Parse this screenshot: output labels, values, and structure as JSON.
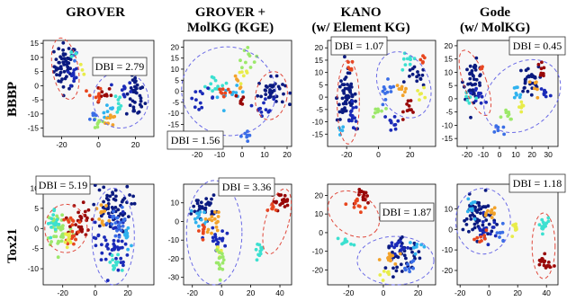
{
  "column_titles": [
    {
      "line1": "GROVER",
      "line2": ""
    },
    {
      "line1": "GROVER +",
      "line2": "MolKG (KGE)"
    },
    {
      "line1": "KANO",
      "line2": "(w/ Element KG)"
    },
    {
      "line1": "Gode",
      "line2": "(w/ MolKG)"
    }
  ],
  "row_labels": [
    "BBBP",
    "Tox21"
  ],
  "colors": {
    "panel_bg": "#f7f7f7",
    "red_ellipse": "#e0483b",
    "blue_ellipse": "#6a6ae6",
    "palette": [
      "#0a1a80",
      "#1a2ab8",
      "#3a6ee6",
      "#2fb2ee",
      "#3ce0d0",
      "#9ce86a",
      "#e8ec4a",
      "#f2a22a",
      "#e8461e",
      "#980808"
    ]
  },
  "chart_data": [
    {
      "type": "scatter",
      "row": "BBBP",
      "method": "GROVER",
      "annotation": "DBI = 2.79",
      "xlim": [
        -30,
        30
      ],
      "ylim": [
        -18,
        16
      ],
      "xticks": [
        -20,
        0,
        20
      ],
      "yticks": [
        15,
        10,
        5,
        0,
        -5,
        -10,
        -15
      ],
      "clusters": [
        {
          "color": 0,
          "cx": -18,
          "cy": 7,
          "sx": 3,
          "sy": 4,
          "n": 55
        },
        {
          "color": 1,
          "cx": -15,
          "cy": 3,
          "sx": 2,
          "sy": 2,
          "n": 10
        },
        {
          "color": 2,
          "cx": -12,
          "cy": 10,
          "sx": 1,
          "sy": 1,
          "n": 3
        },
        {
          "color": 4,
          "cx": -14,
          "cy": 11,
          "sx": 1,
          "sy": 1,
          "n": 3
        },
        {
          "color": 6,
          "cx": -9,
          "cy": 5,
          "sx": 1,
          "sy": 1,
          "n": 3
        },
        {
          "color": 0,
          "cx": 20,
          "cy": -4,
          "sx": 2.5,
          "sy": 4,
          "n": 35
        },
        {
          "color": 9,
          "cx": 3,
          "cy": -3,
          "sx": 2,
          "sy": 2,
          "n": 10
        },
        {
          "color": 8,
          "cx": -2,
          "cy": -4,
          "sx": 2,
          "sy": 2,
          "n": 8
        },
        {
          "color": 4,
          "cx": 10,
          "cy": -6,
          "sx": 2,
          "sy": 2,
          "n": 10
        },
        {
          "color": 3,
          "cx": 5,
          "cy": -9,
          "sx": 2,
          "sy": 2,
          "n": 8
        },
        {
          "color": 5,
          "cx": 0,
          "cy": -13,
          "sx": 2,
          "sy": 1.5,
          "n": 8
        },
        {
          "color": 7,
          "cx": 8,
          "cy": -12,
          "sx": 2,
          "sy": 1.5,
          "n": 8
        },
        {
          "color": 2,
          "cx": -3,
          "cy": -10,
          "sx": 1.5,
          "sy": 1.5,
          "n": 6
        },
        {
          "color": 1,
          "cx": 14,
          "cy": -2,
          "sx": 2,
          "sy": 2,
          "n": 10
        }
      ]
    },
    {
      "type": "scatter",
      "row": "BBBP",
      "method": "GROVER + MolKG (KGE)",
      "annotation": "DBI = 1.56",
      "xlim": [
        -26,
        22
      ],
      "ylim": [
        -25,
        23
      ],
      "xticks": [
        -20,
        -10,
        0,
        10,
        20
      ],
      "yticks": [
        20,
        15,
        10,
        5,
        0,
        -5,
        -10,
        -15,
        -20
      ],
      "clusters": [
        {
          "color": 5,
          "cx": 2,
          "cy": 17,
          "sx": 2,
          "sy": 3,
          "n": 10
        },
        {
          "color": 6,
          "cx": 1,
          "cy": 8,
          "sx": 1.5,
          "sy": 2,
          "n": 6
        },
        {
          "color": 0,
          "cx": 13,
          "cy": 0,
          "sx": 3,
          "sy": 3,
          "n": 40
        },
        {
          "color": 1,
          "cx": 10,
          "cy": -7,
          "sx": 2,
          "sy": 2,
          "n": 12
        },
        {
          "color": 4,
          "cx": -12,
          "cy": 3,
          "sx": 3,
          "sy": 2,
          "n": 12
        },
        {
          "color": 3,
          "cx": -5,
          "cy": -2,
          "sx": 3,
          "sy": 2,
          "n": 12
        },
        {
          "color": 8,
          "cx": -8,
          "cy": 0,
          "sx": 2,
          "sy": 2,
          "n": 8
        },
        {
          "color": 9,
          "cx": 0,
          "cy": -4,
          "sx": 1.5,
          "sy": 1.5,
          "n": 6
        },
        {
          "color": 1,
          "cx": -18,
          "cy": -3,
          "sx": 3,
          "sy": 2,
          "n": 12
        },
        {
          "color": 7,
          "cx": -2,
          "cy": 4,
          "sx": 1.5,
          "sy": 1.5,
          "n": 5
        },
        {
          "color": 2,
          "cx": 2,
          "cy": -20,
          "sx": 1.5,
          "sy": 1.5,
          "n": 8
        }
      ]
    },
    {
      "type": "scatter",
      "row": "BBBP",
      "method": "KANO (w/ Element KG)",
      "annotation": "DBI = 1.07",
      "xlim": [
        -32,
        36
      ],
      "ylim": [
        -20,
        23
      ],
      "xticks": [
        -20,
        0,
        20
      ],
      "yticks": [
        20,
        15,
        10,
        5,
        0,
        -5,
        -10,
        -15
      ],
      "clusters": [
        {
          "color": 0,
          "cx": -20,
          "cy": 0,
          "sx": 3,
          "sy": 5,
          "n": 60
        },
        {
          "color": 1,
          "cx": -16,
          "cy": -8,
          "sx": 2,
          "sy": 3,
          "n": 15
        },
        {
          "color": 8,
          "cx": -18,
          "cy": 12,
          "sx": 1,
          "sy": 1.5,
          "n": 6
        },
        {
          "color": 3,
          "cx": -24,
          "cy": -14,
          "sx": 1.5,
          "sy": 1.5,
          "n": 5
        },
        {
          "color": 4,
          "cx": 18,
          "cy": 14,
          "sx": 3,
          "sy": 2,
          "n": 10
        },
        {
          "color": 0,
          "cx": 24,
          "cy": 8,
          "sx": 3,
          "sy": 2,
          "n": 15
        },
        {
          "color": 7,
          "cx": 15,
          "cy": 4,
          "sx": 2,
          "sy": 2,
          "n": 8
        },
        {
          "color": 2,
          "cx": 5,
          "cy": 0,
          "sx": 3,
          "sy": 3,
          "n": 12
        },
        {
          "color": 9,
          "cx": 20,
          "cy": -4,
          "sx": 2,
          "sy": 2,
          "n": 10
        },
        {
          "color": 5,
          "cx": 0,
          "cy": -6,
          "sx": 2,
          "sy": 2,
          "n": 8
        },
        {
          "color": 1,
          "cx": 10,
          "cy": -10,
          "sx": 2,
          "sy": 2,
          "n": 10
        },
        {
          "color": 6,
          "cx": 27,
          "cy": 1,
          "sx": 1.5,
          "sy": 1.5,
          "n": 6
        },
        {
          "color": 8,
          "cx": 28,
          "cy": 16,
          "sx": 1.5,
          "sy": 1.5,
          "n": 5
        }
      ]
    },
    {
      "type": "scatter",
      "row": "BBBP",
      "method": "Gode (w/ MolKG)",
      "annotation": "DBI = 0.45",
      "xlim": [
        -26,
        36
      ],
      "ylim": [
        -18,
        22
      ],
      "xticks": [
        -20,
        -10,
        0,
        10,
        20,
        30
      ],
      "yticks": [
        20,
        15,
        10,
        5,
        0,
        -5,
        -10,
        -15
      ],
      "clusters": [
        {
          "color": 0,
          "cx": -16,
          "cy": 7,
          "sx": 3,
          "sy": 3.5,
          "n": 45
        },
        {
          "color": 1,
          "cx": -13,
          "cy": 2,
          "sx": 2,
          "sy": 2,
          "n": 10
        },
        {
          "color": 4,
          "cx": -19,
          "cy": -1,
          "sx": 1.5,
          "sy": 1.5,
          "n": 6
        },
        {
          "color": 8,
          "cx": -11,
          "cy": 11,
          "sx": 1,
          "sy": 1,
          "n": 3
        },
        {
          "color": 0,
          "cx": 18,
          "cy": 7,
          "sx": 3,
          "sy": 2.5,
          "n": 30
        },
        {
          "color": 9,
          "cx": 26,
          "cy": 11,
          "sx": 2,
          "sy": 2,
          "n": 8
        },
        {
          "color": 3,
          "cx": 10,
          "cy": 1,
          "sx": 2,
          "sy": 2,
          "n": 8
        },
        {
          "color": 5,
          "cx": 5,
          "cy": -7,
          "sx": 2,
          "sy": 2,
          "n": 8
        },
        {
          "color": 2,
          "cx": 0,
          "cy": -12,
          "sx": 1.5,
          "sy": 1.5,
          "n": 6
        },
        {
          "color": 7,
          "cx": 22,
          "cy": 4,
          "sx": 2,
          "sy": 2,
          "n": 6
        },
        {
          "color": 6,
          "cx": 14,
          "cy": -3,
          "sx": 2,
          "sy": 2,
          "n": 6
        },
        {
          "color": 1,
          "cx": 28,
          "cy": 2,
          "sx": 2,
          "sy": 2,
          "n": 8
        }
      ]
    },
    {
      "type": "scatter",
      "row": "Tox21",
      "method": "GROVER",
      "annotation": "DBI = 5.19",
      "xlim": [
        -32,
        36
      ],
      "ylim": [
        -14,
        11
      ],
      "xticks": [
        -20,
        0,
        20
      ],
      "yticks": [
        10,
        5,
        0,
        -5,
        -10
      ],
      "clusters": [
        {
          "color": 5,
          "cx": -22,
          "cy": 0,
          "sx": 4,
          "sy": 2.5,
          "n": 45
        },
        {
          "color": 4,
          "cx": -25,
          "cy": 1,
          "sx": 2,
          "sy": 2,
          "n": 15
        },
        {
          "color": 9,
          "cx": -9,
          "cy": 2,
          "sx": 3,
          "sy": 2.5,
          "n": 30
        },
        {
          "color": 8,
          "cx": -14,
          "cy": 0,
          "sx": 2,
          "sy": 2,
          "n": 20
        },
        {
          "color": 6,
          "cx": -18,
          "cy": -3,
          "sx": 2,
          "sy": 1.5,
          "n": 10
        },
        {
          "color": 0,
          "cx": 10,
          "cy": 5,
          "sx": 6,
          "sy": 3,
          "n": 60
        },
        {
          "color": 1,
          "cx": 10,
          "cy": -4,
          "sx": 5,
          "sy": 4,
          "n": 50
        },
        {
          "color": 2,
          "cx": 14,
          "cy": 1,
          "sx": 3,
          "sy": 2,
          "n": 20
        },
        {
          "color": 7,
          "cx": 5,
          "cy": 2,
          "sx": 2,
          "sy": 2,
          "n": 12
        },
        {
          "color": 4,
          "cx": 12,
          "cy": -9,
          "sx": 2,
          "sy": 1.5,
          "n": 12
        },
        {
          "color": 3,
          "cx": 20,
          "cy": -2,
          "sx": 2,
          "sy": 2,
          "n": 10
        }
      ]
    },
    {
      "type": "scatter",
      "row": "Tox21",
      "method": "GROVER + MolKG (KGE)",
      "annotation": "DBI = 3.36",
      "xlim": [
        -26,
        48
      ],
      "ylim": [
        -34,
        20
      ],
      "xticks": [
        -20,
        0,
        20,
        40
      ],
      "yticks": [
        10,
        0,
        -10,
        -20,
        -30
      ],
      "clusters": [
        {
          "color": 0,
          "cx": -12,
          "cy": 8,
          "sx": 4,
          "sy": 3,
          "n": 30
        },
        {
          "color": 3,
          "cx": -15,
          "cy": 2,
          "sx": 3,
          "sy": 3,
          "n": 12
        },
        {
          "color": 7,
          "cx": -5,
          "cy": 0,
          "sx": 3,
          "sy": 3,
          "n": 15
        },
        {
          "color": 1,
          "cx": -4,
          "cy": -10,
          "sx": 3,
          "sy": 3,
          "n": 20
        },
        {
          "color": 8,
          "cx": -13,
          "cy": -5,
          "sx": 2,
          "sy": 2,
          "n": 8
        },
        {
          "color": 6,
          "cx": -2,
          "cy": -15,
          "sx": 2,
          "sy": 2,
          "n": 10
        },
        {
          "color": 5,
          "cx": 0,
          "cy": -22,
          "sx": 2,
          "sy": 3,
          "n": 15
        },
        {
          "color": 9,
          "cx": 40,
          "cy": 11,
          "sx": 3,
          "sy": 2,
          "n": 20
        },
        {
          "color": 8,
          "cx": 36,
          "cy": 7,
          "sx": 2,
          "sy": 2,
          "n": 8
        },
        {
          "color": 4,
          "cx": 27,
          "cy": -15,
          "sx": 2,
          "sy": 2,
          "n": 12
        }
      ]
    },
    {
      "type": "scatter",
      "row": "Tox21",
      "method": "KANO (w/ Element KG)",
      "annotation": "DBI = 1.87",
      "xlim": [
        -32,
        30
      ],
      "ylim": [
        -28,
        26
      ],
      "xticks": [
        -20,
        0,
        20
      ],
      "yticks": [
        20,
        10,
        0,
        -10,
        -20
      ],
      "clusters": [
        {
          "color": 9,
          "cx": -11,
          "cy": 19,
          "sx": 2,
          "sy": 2,
          "n": 15
        },
        {
          "color": 8,
          "cx": -14,
          "cy": 15,
          "sx": 2,
          "sy": 2,
          "n": 10
        },
        {
          "color": 4,
          "cx": -22,
          "cy": -5,
          "sx": 2,
          "sy": 1.5,
          "n": 10
        },
        {
          "color": 0,
          "cx": 12,
          "cy": -12,
          "sx": 5,
          "sy": 4,
          "n": 40
        },
        {
          "color": 1,
          "cx": 8,
          "cy": -8,
          "sx": 3,
          "sy": 3,
          "n": 15
        },
        {
          "color": 7,
          "cx": 5,
          "cy": -14,
          "sx": 3,
          "sy": 2,
          "n": 12
        },
        {
          "color": 3,
          "cx": 18,
          "cy": -7,
          "sx": 2,
          "sy": 2,
          "n": 8
        },
        {
          "color": 6,
          "cx": 0,
          "cy": -22,
          "sx": 2,
          "sy": 1.5,
          "n": 6
        },
        {
          "color": 2,
          "cx": 15,
          "cy": -18,
          "sx": 2,
          "sy": 2,
          "n": 8
        }
      ]
    },
    {
      "type": "scatter",
      "row": "Tox21",
      "method": "Gode (w/ MolKG)",
      "annotation": "DBI = 1.18",
      "xlim": [
        -22,
        48
      ],
      "ylim": [
        -27,
        22
      ],
      "xticks": [
        -20,
        0,
        20,
        40
      ],
      "yticks": [
        10,
        0,
        -10,
        -20
      ],
      "clusters": [
        {
          "color": 0,
          "cx": -8,
          "cy": 6,
          "sx": 5,
          "sy": 5,
          "n": 60
        },
        {
          "color": 1,
          "cx": -2,
          "cy": 0,
          "sx": 4,
          "sy": 3,
          "n": 20
        },
        {
          "color": 3,
          "cx": -12,
          "cy": 10,
          "sx": 2,
          "sy": 2,
          "n": 10
        },
        {
          "color": 7,
          "cx": 3,
          "cy": 8,
          "sx": 2,
          "sy": 2,
          "n": 10
        },
        {
          "color": 8,
          "cx": -5,
          "cy": -5,
          "sx": 2,
          "sy": 2,
          "n": 8
        },
        {
          "color": 2,
          "cx": 8,
          "cy": -3,
          "sx": 2,
          "sy": 2,
          "n": 8
        },
        {
          "color": 6,
          "cx": 18,
          "cy": 0,
          "sx": 1.5,
          "sy": 2.5,
          "n": 10
        },
        {
          "color": 4,
          "cx": 38,
          "cy": 2,
          "sx": 2,
          "sy": 2,
          "n": 15
        },
        {
          "color": 9,
          "cx": 38,
          "cy": -17,
          "sx": 2.5,
          "sy": 2,
          "n": 18
        }
      ]
    }
  ]
}
